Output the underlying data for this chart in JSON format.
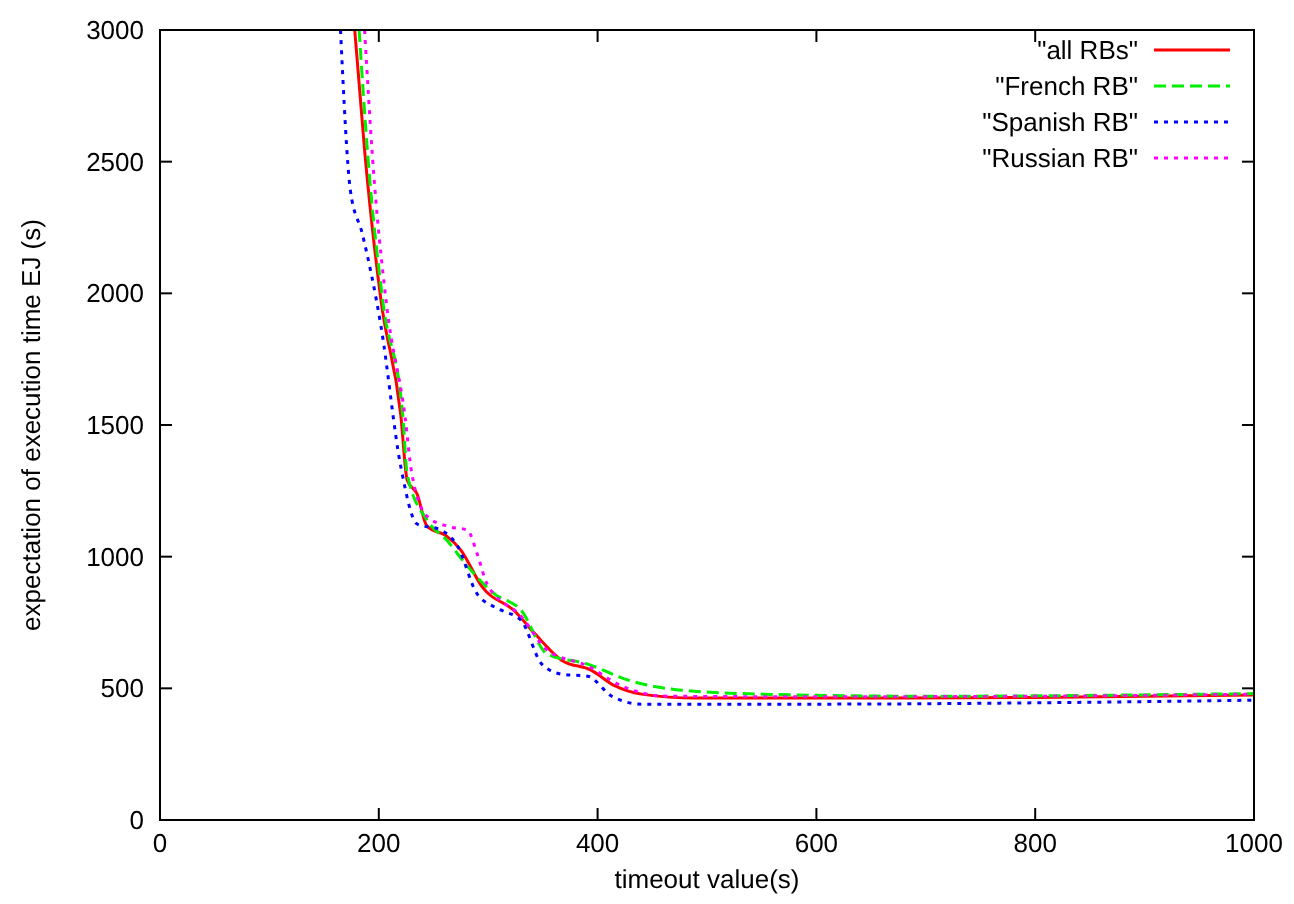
{
  "chart_data": {
    "type": "line",
    "xlabel": "timeout value(s)",
    "ylabel": "expectation of execution time EJ (s)",
    "xlim": [
      0,
      1000
    ],
    "ylim": [
      0,
      3000
    ],
    "xticks": [
      0,
      200,
      400,
      600,
      800,
      1000
    ],
    "yticks": [
      0,
      500,
      1000,
      1500,
      2000,
      2500,
      3000
    ],
    "grid": false,
    "legend": "top right",
    "series": [
      {
        "name": "\"all RBs\"",
        "color": "#ff0000",
        "line_style": "solid",
        "x": [
          178,
          187,
          202,
          220,
          226,
          235,
          244,
          262,
          275,
          294,
          325,
          343,
          367,
          394,
          416,
          440,
          490,
          600,
          800,
          1000
        ],
        "values": [
          3000,
          2544,
          1974,
          1541,
          1290,
          1238,
          1116,
          1078,
          1025,
          888,
          790,
          706,
          607,
          569,
          509,
          478,
          463,
          463,
          465,
          475
        ]
      },
      {
        "name": "\"French RB\"",
        "color": "#00ee00",
        "line_style": "dashed",
        "x": [
          182,
          190,
          204,
          222,
          226,
          244,
          262,
          281,
          306,
          330,
          354,
          391,
          428,
          477,
          550,
          700,
          1000
        ],
        "values": [
          3000,
          2520,
          1960,
          1530,
          1313,
          1139,
          1063,
          964,
          858,
          797,
          630,
          592,
          531,
          493,
          478,
          470,
          480
        ]
      },
      {
        "name": "\"Spanish RB\"",
        "color": "#0000ff",
        "line_style": "dotted",
        "x": [
          165,
          174,
          185,
          202,
          220,
          235,
          257,
          272,
          290,
          312,
          330,
          349,
          367,
          391,
          413,
          440,
          600,
          800,
          1000
        ],
        "values": [
          3000,
          2392,
          2225,
          1875,
          1344,
          1124,
          1101,
          1040,
          858,
          797,
          759,
          592,
          554,
          546,
          470,
          440,
          440,
          445,
          455
        ]
      },
      {
        "name": "\"Russian RB\"",
        "color": "#ff00ff",
        "line_style": "dotted",
        "x": [
          187,
          194,
          207,
          224,
          230,
          244,
          262,
          281,
          290,
          299,
          330,
          354,
          391,
          422,
          464,
          600,
          800,
          1000
        ],
        "values": [
          3000,
          2530,
          1960,
          1530,
          1320,
          1154,
          1116,
          1101,
          1010,
          896,
          774,
          645,
          585,
          509,
          470,
          468,
          470,
          478
        ]
      }
    ]
  }
}
